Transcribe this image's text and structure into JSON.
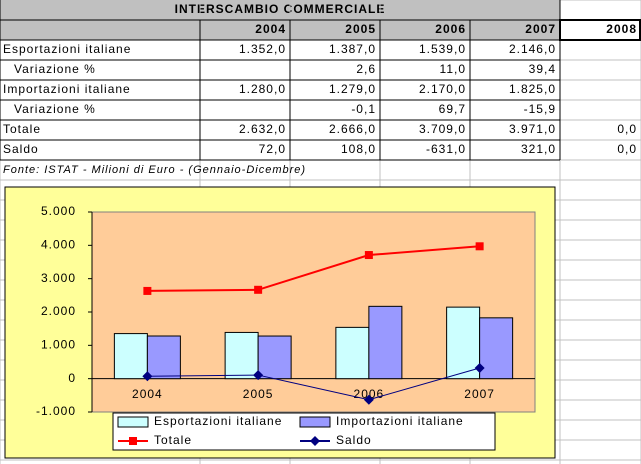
{
  "table": {
    "title": "INTERSCAMBIO COMMERCIALE",
    "header": [
      "2004",
      "2005",
      "2006",
      "2007",
      "2008"
    ],
    "rows": [
      [
        "Esportazioni italiane",
        "1.352,0",
        "1.387,0",
        "1.539,0",
        "2.146,0",
        null
      ],
      [
        "Variazione %",
        null,
        "2,6",
        "11,0",
        "39,4",
        null
      ],
      [
        "Importazioni italiane",
        "1.280,0",
        "1.279,0",
        "2.170,0",
        "1.825,0",
        null
      ],
      [
        "Variazione %",
        null,
        "-0,1",
        "69,7",
        "-15,9",
        null
      ],
      [
        "Totale",
        "2.632,0",
        "2.666,0",
        "3.709,0",
        "3.971,0",
        "0,0"
      ],
      [
        "Saldo",
        "72,0",
        "108,0",
        "-631,0",
        "321,0",
        "0,0"
      ]
    ],
    "note": "Fonte: ISTAT - Milioni di Euro - (Gennaio-Dicembre)"
  },
  "chart_data": {
    "type": "bar",
    "categories": [
      "2004",
      "2005",
      "2006",
      "2007"
    ],
    "series": [
      {
        "name": "Esportazioni italiane",
        "type": "bar",
        "color": "#ccffff",
        "values": [
          1352,
          1387,
          1539,
          2146
        ]
      },
      {
        "name": "Importazioni italiane",
        "type": "bar",
        "color": "#9999ff",
        "values": [
          1280,
          1279,
          2170,
          1825
        ]
      },
      {
        "name": "Totale",
        "type": "line",
        "color": "#ff0000",
        "values": [
          2632,
          2666,
          3709,
          3971
        ]
      },
      {
        "name": "Saldo",
        "type": "line",
        "color": "#000080",
        "values": [
          72,
          108,
          -631,
          321
        ]
      }
    ],
    "ylim": [
      -1000,
      5000
    ],
    "yticks": [
      {
        "value": -1000,
        "label": "-1.000"
      },
      0,
      {
        "value": 1000,
        "label": "1.000"
      },
      {
        "value": 2000,
        "label": "2.000"
      },
      {
        "value": 3000,
        "label": "3.000"
      },
      {
        "value": 4000,
        "label": "4.000"
      },
      {
        "value": 5000,
        "label": "5.000"
      }
    ],
    "grid": false,
    "legend": "bottom"
  }
}
